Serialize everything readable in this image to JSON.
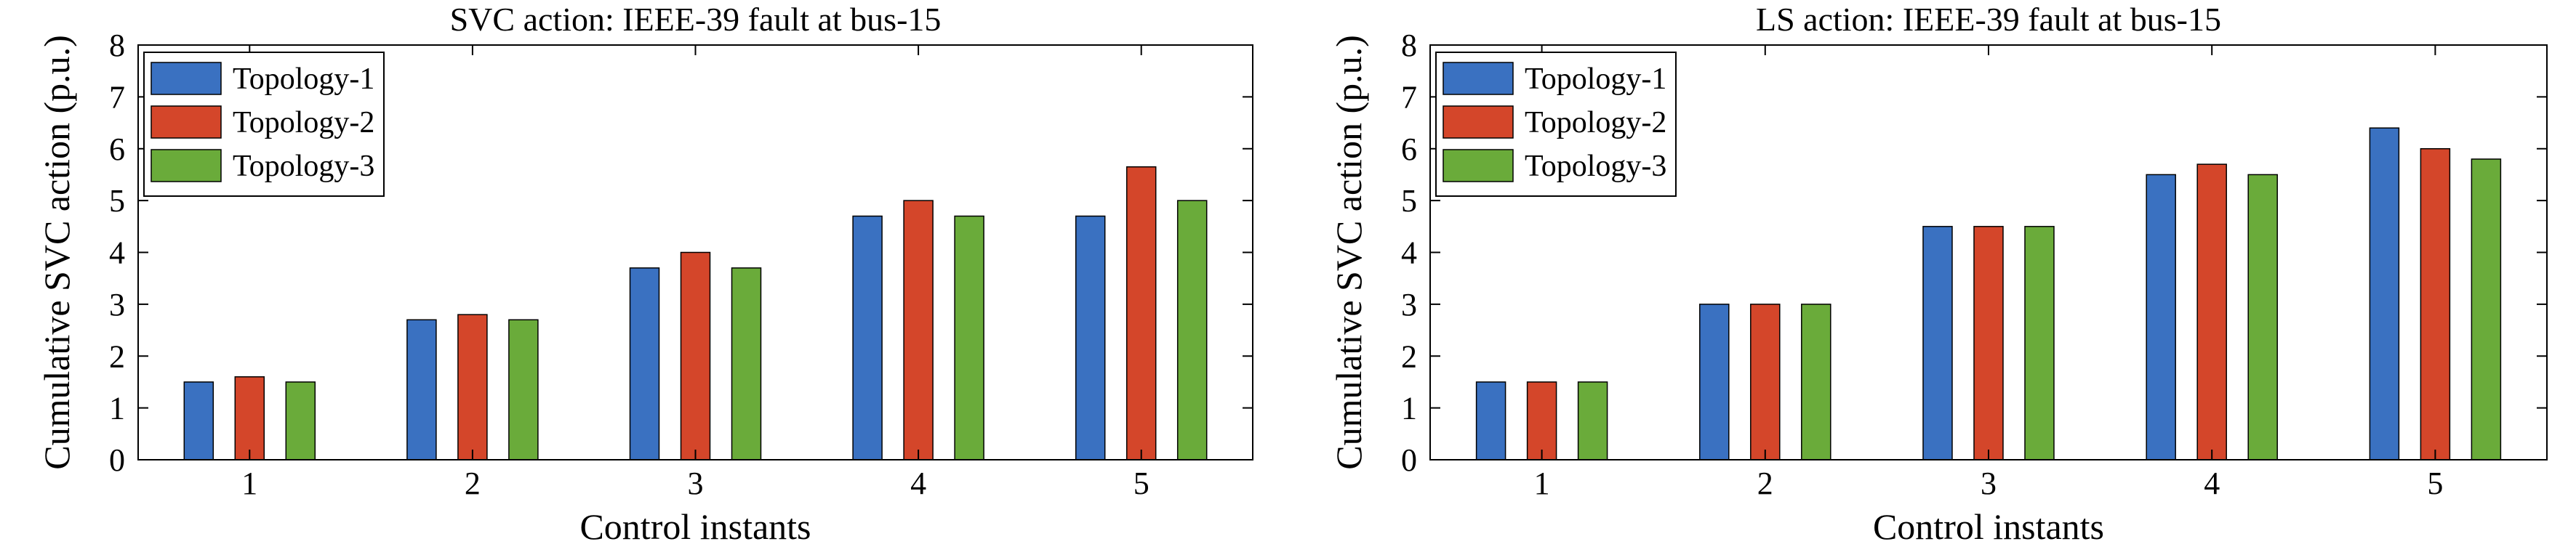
{
  "chart_data": [
    {
      "type": "bar",
      "title": "SVC action: IEEE-39 fault at bus-15",
      "xlabel": "Control instants",
      "ylabel": "Cumulative SVC action (p.u.)",
      "categories": [
        "1",
        "2",
        "3",
        "4",
        "5"
      ],
      "yticks": [
        "0",
        "1",
        "2",
        "3",
        "4",
        "5",
        "6",
        "7",
        "8"
      ],
      "ylim": [
        0,
        8
      ],
      "grid": false,
      "legend_position": "top-left",
      "series": [
        {
          "name": "Topology-1",
          "color": "#3a71c1",
          "values": [
            1.5,
            2.7,
            3.7,
            4.7,
            4.7
          ]
        },
        {
          "name": "Topology-2",
          "color": "#d4462a",
          "values": [
            1.6,
            2.8,
            4.0,
            5.0,
            5.65
          ]
        },
        {
          "name": "Topology-3",
          "color": "#6aab3a",
          "values": [
            1.5,
            2.7,
            3.7,
            4.7,
            5.0
          ]
        }
      ]
    },
    {
      "type": "bar",
      "title": "LS action: IEEE-39 fault at bus-15",
      "xlabel": "Control instants",
      "ylabel": "Cumulative SVC action (p.u.)",
      "categories": [
        "1",
        "2",
        "3",
        "4",
        "5"
      ],
      "yticks": [
        "0",
        "1",
        "2",
        "3",
        "4",
        "5",
        "6",
        "7",
        "8"
      ],
      "ylim": [
        0,
        8
      ],
      "grid": false,
      "legend_position": "top-left",
      "series": [
        {
          "name": "Topology-1",
          "color": "#3a71c1",
          "values": [
            1.5,
            3.0,
            4.5,
            5.5,
            6.4
          ]
        },
        {
          "name": "Topology-2",
          "color": "#d4462a",
          "values": [
            1.5,
            3.0,
            4.5,
            5.7,
            6.0
          ]
        },
        {
          "name": "Topology-3",
          "color": "#6aab3a",
          "values": [
            1.5,
            3.0,
            4.5,
            5.5,
            5.8
          ]
        }
      ]
    }
  ]
}
